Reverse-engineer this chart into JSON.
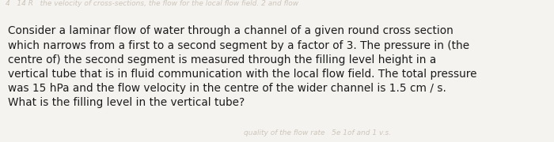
{
  "background_color": "#f5f3f0",
  "text_color": "#1c1c1c",
  "watermark_color": "#c5bdb0",
  "main_text": "Consider a laminar flow of water through a channel of a given round cross section\nwhich narrows from a first to a second segment by a factor of 3. The pressure in (the\ncentre of) the second segment is measured through the filling level height in a\nvertical tube that is in fluid communication with the local flow field. The total pressure\nwas 15 hPa and the flow velocity in the centre of the wider channel is 1.5 cm / s.\nWhat is the filling level in the vertical tube?",
  "watermark_top": "4   14 R   the velocity of cross-sections, the flow for the local flow field. 2 and flow",
  "watermark_bottom": "quality of the flow rate   5e 1of and 1 v.s.",
  "font_size_main": 9.8,
  "font_size_watermark": 6.5,
  "fig_width": 7.0,
  "fig_height": 1.8,
  "dpi": 100
}
